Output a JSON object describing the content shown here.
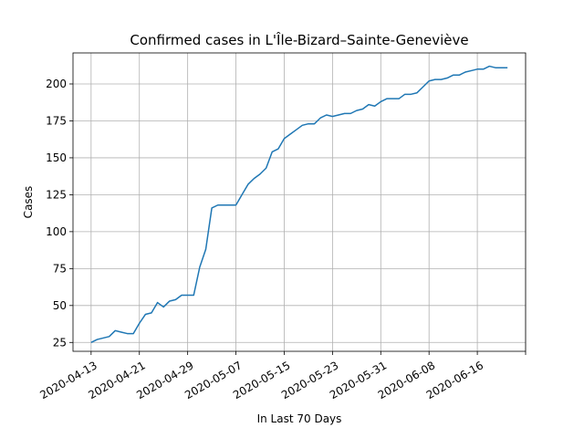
{
  "chart_data": {
    "type": "line",
    "title": "Confirmed cases in L'Île-Bizard–Sainte-Geneviève",
    "xlabel": "In Last 70 Days",
    "ylabel": "Cases",
    "xlim": [
      "2020-04-10",
      "2020-06-24"
    ],
    "ylim": [
      19,
      221
    ],
    "grid": true,
    "x_ticks": [
      "2020-04-13",
      "2020-04-21",
      "2020-04-29",
      "2020-05-07",
      "2020-05-15",
      "2020-05-23",
      "2020-05-31",
      "2020-06-08",
      "2020-06-16",
      ""
    ],
    "y_ticks": [
      25,
      50,
      75,
      100,
      125,
      150,
      175,
      200
    ],
    "series": [
      {
        "color": "#1f77b4",
        "x": [
          "2020-04-13",
          "2020-04-14",
          "2020-04-15",
          "2020-04-16",
          "2020-04-17",
          "2020-04-18",
          "2020-04-19",
          "2020-04-20",
          "2020-04-21",
          "2020-04-22",
          "2020-04-23",
          "2020-04-24",
          "2020-04-25",
          "2020-04-26",
          "2020-04-27",
          "2020-04-28",
          "2020-04-29",
          "2020-04-30",
          "2020-05-01",
          "2020-05-02",
          "2020-05-03",
          "2020-05-04",
          "2020-05-05",
          "2020-05-06",
          "2020-05-07",
          "2020-05-08",
          "2020-05-09",
          "2020-05-10",
          "2020-05-11",
          "2020-05-12",
          "2020-05-13",
          "2020-05-14",
          "2020-05-15",
          "2020-05-16",
          "2020-05-17",
          "2020-05-18",
          "2020-05-19",
          "2020-05-20",
          "2020-05-21",
          "2020-05-22",
          "2020-05-23",
          "2020-05-24",
          "2020-05-25",
          "2020-05-26",
          "2020-05-27",
          "2020-05-28",
          "2020-05-29",
          "2020-05-30",
          "2020-05-31",
          "2020-06-01",
          "2020-06-02",
          "2020-06-03",
          "2020-06-04",
          "2020-06-05",
          "2020-06-06",
          "2020-06-07",
          "2020-06-08",
          "2020-06-09",
          "2020-06-10",
          "2020-06-11",
          "2020-06-12",
          "2020-06-13",
          "2020-06-14",
          "2020-06-15",
          "2020-06-16",
          "2020-06-17",
          "2020-06-18",
          "2020-06-19",
          "2020-06-20",
          "2020-06-21"
        ],
        "values": [
          25,
          27,
          28,
          29,
          33,
          32,
          31,
          31,
          38,
          44,
          45,
          52,
          49,
          53,
          54,
          57,
          57,
          57,
          76,
          88,
          116,
          118,
          118,
          118,
          118,
          125,
          132,
          136,
          139,
          143,
          154,
          156,
          163,
          166,
          169,
          172,
          173,
          173,
          177,
          179,
          178,
          179,
          180,
          180,
          182,
          183,
          186,
          185,
          188,
          190,
          190,
          190,
          193,
          193,
          194,
          198,
          202,
          203,
          203,
          204,
          206,
          206,
          208,
          209,
          210,
          210,
          212,
          211,
          211,
          211
        ]
      }
    ]
  }
}
